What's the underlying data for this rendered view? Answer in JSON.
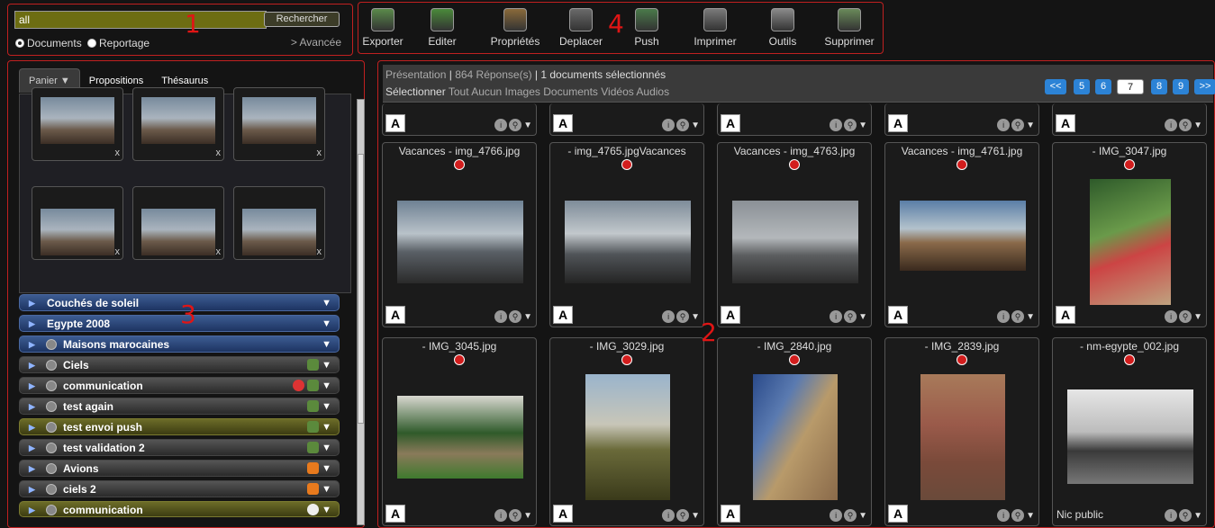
{
  "search": {
    "value": "all",
    "button": "Rechercher",
    "radio_documents": "Documents",
    "radio_reportage": "Reportage",
    "advanced": "> Avancée"
  },
  "markers": {
    "m1": "1",
    "m2": "2",
    "m3": "3",
    "m4": "4"
  },
  "toolbar": {
    "items": [
      {
        "label": "Exporter",
        "icon": "export-icon"
      },
      {
        "label": "Editer",
        "icon": "edit-icon"
      },
      {
        "label": "Propriétés",
        "icon": "properties-icon"
      },
      {
        "label": "Deplacer",
        "icon": "move-icon"
      },
      {
        "label": "Push",
        "icon": "push-icon"
      },
      {
        "label": "Imprimer",
        "icon": "print-icon"
      },
      {
        "label": "Outils",
        "icon": "tools-icon"
      },
      {
        "label": "Supprimer",
        "icon": "delete-icon"
      }
    ]
  },
  "left_tabs": {
    "panier": "Panier ▼",
    "propositions": "Propositions",
    "thesaurus": "Thésaurus"
  },
  "baskets": [
    {
      "label": "Couchés de soleil",
      "style": "blue"
    },
    {
      "label": "Egypte 2008",
      "style": "blue"
    },
    {
      "label": "Maisons marocaines",
      "style": "blue"
    },
    {
      "label": "Ciels",
      "style": "dark"
    },
    {
      "label": "communication",
      "style": "dark"
    },
    {
      "label": "test again",
      "style": "dark"
    },
    {
      "label": "test envoi push",
      "style": "olive"
    },
    {
      "label": "test validation 2",
      "style": "dark"
    },
    {
      "label": "Avions",
      "style": "dark"
    },
    {
      "label": "ciels 2",
      "style": "dark"
    },
    {
      "label": "communication",
      "style": "olive"
    }
  ],
  "results": {
    "presentation": "Présentation",
    "count": "864 Réponse(s)",
    "selected": "1 documents sélectionnés",
    "select_label": "Sélectionner",
    "select_opts": "Tout Aucun Images Documents Vidéos Audios",
    "pages": {
      "first": "<<",
      "p5": "5",
      "p6": "6",
      "p7": "7",
      "p8": "8",
      "p9": "9",
      "last": ">>"
    },
    "cards": [
      {
        "title": "Vacances - img_4766.jpg"
      },
      {
        "title": "- img_4765.jpgVacances"
      },
      {
        "title": "Vacances - img_4763.jpg"
      },
      {
        "title": "Vacances - img_4761.jpg"
      },
      {
        "title": "- IMG_3047.jpg"
      },
      {
        "title": "- IMG_3045.jpg"
      },
      {
        "title": "- IMG_3029.jpg"
      },
      {
        "title": "- IMG_2840.jpg"
      },
      {
        "title": "- IMG_2839.jpg"
      },
      {
        "title": "- nm-egypte_002.jpg",
        "footer": "Nic public"
      }
    ]
  },
  "colors": {
    "accent_red": "#c02020",
    "page_blue": "#2c83d6"
  }
}
